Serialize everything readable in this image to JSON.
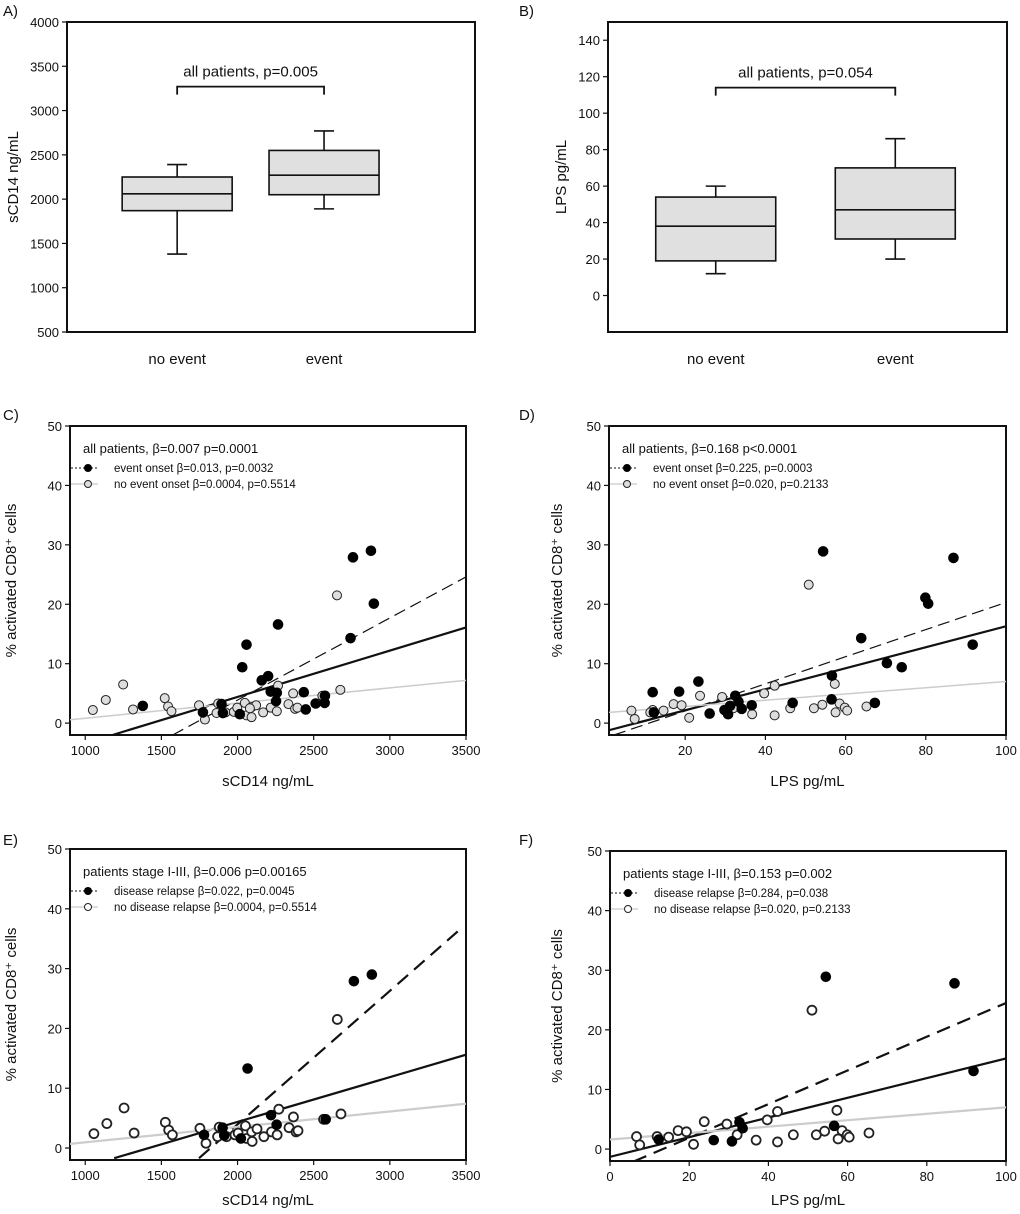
{
  "chart_data": [
    {
      "panel_label": "A)",
      "type": "box",
      "ylabel": "sCD14 ng/mL",
      "ylim": [
        500,
        4000
      ],
      "yticks": [
        500,
        1000,
        1500,
        2000,
        2500,
        3000,
        3500,
        4000
      ],
      "categories": [
        "no event",
        "event"
      ],
      "boxes": [
        {
          "whisker_low": 1380,
          "q1": 1870,
          "median": 2060,
          "q3": 2250,
          "whisker_high": 2390
        },
        {
          "whisker_low": 1890,
          "q1": 2050,
          "median": 2270,
          "q3": 2550,
          "whisker_high": 2770
        }
      ],
      "annotation": {
        "text": "all patients, p=0.005",
        "bracket_y": 3270
      },
      "box_fill": "#e0e0e0"
    },
    {
      "panel_label": "B)",
      "type": "box",
      "ylabel": "LPS pg/mL",
      "ylim": [
        -20,
        150
      ],
      "yticks": [
        0,
        20,
        40,
        60,
        80,
        100,
        120,
        140
      ],
      "categories": [
        "no event",
        "event"
      ],
      "boxes": [
        {
          "whisker_low": 12,
          "q1": 19,
          "median": 38,
          "q3": 54,
          "whisker_high": 60
        },
        {
          "whisker_low": 20,
          "q1": 31,
          "median": 47,
          "q3": 70,
          "whisker_high": 86
        }
      ],
      "annotation": {
        "text": "all patients, p=0.054",
        "bracket_y": 114
      },
      "box_fill": "#e0e0e0"
    },
    {
      "panel_label": "C)",
      "type": "scatter",
      "xlabel": "sCD14 ng/mL",
      "ylabel": "% activated CD8⁺ cells",
      "xlim": [
        900,
        3500
      ],
      "ylim": [
        -2,
        50
      ],
      "xticks": [
        1000,
        1500,
        2000,
        2500,
        3000,
        3500
      ],
      "yticks": [
        0,
        10,
        20,
        30,
        40,
        50
      ],
      "legend": {
        "title": "all patients, β=0.007 p=0.0001",
        "filled": "event onset β=0.013, p=0.0032",
        "open": "no event onset β=0.0004, p=0.5514",
        "placement": "top-left"
      },
      "open_fill": "#dddddd",
      "filled_points": [
        [
          1378,
          2.9
        ],
        [
          1773,
          1.8
        ],
        [
          1895,
          3.2
        ],
        [
          1904,
          1.7
        ],
        [
          2015,
          1.5
        ],
        [
          2031,
          9.4
        ],
        [
          2059,
          13.2
        ],
        [
          2159,
          7.2
        ],
        [
          2201,
          7.9
        ],
        [
          2218,
          5.3
        ],
        [
          2258,
          5.1
        ],
        [
          2253,
          3.7
        ],
        [
          2266,
          16.6
        ],
        [
          2435,
          5.2
        ],
        [
          2448,
          2.3
        ],
        [
          2513,
          3.3
        ],
        [
          2572,
          3.4
        ],
        [
          2574,
          4.6
        ],
        [
          2742,
          14.3
        ],
        [
          2758,
          27.9
        ],
        [
          2876,
          29.0
        ],
        [
          2895,
          20.1
        ]
      ],
      "open_points": [
        [
          1050,
          2.2
        ],
        [
          1135,
          3.9
        ],
        [
          1249,
          6.5
        ],
        [
          1314,
          2.3
        ],
        [
          1522,
          4.2
        ],
        [
          1544,
          2.8
        ],
        [
          1566,
          2.0
        ],
        [
          1747,
          3.0
        ],
        [
          1786,
          0.6
        ],
        [
          1862,
          1.7
        ],
        [
          1873,
          3.3
        ],
        [
          1921,
          1.8
        ],
        [
          1976,
          1.9
        ],
        [
          1998,
          2.6
        ],
        [
          2048,
          3.4
        ],
        [
          2059,
          1.3
        ],
        [
          2092,
          2.7
        ],
        [
          2092,
          1.0
        ],
        [
          2122,
          3.0
        ],
        [
          2081,
          2.5
        ],
        [
          2168,
          1.8
        ],
        [
          2218,
          2.6
        ],
        [
          2258,
          2.0
        ],
        [
          2266,
          6.3
        ],
        [
          2334,
          3.2
        ],
        [
          2365,
          5.0
        ],
        [
          2378,
          2.4
        ],
        [
          2393,
          2.6
        ],
        [
          2557,
          4.6
        ],
        [
          2653,
          21.5
        ],
        [
          2675,
          5.6
        ]
      ],
      "fit_lines": [
        {
          "group": "all",
          "style": "solid",
          "x": [
            1179,
            3500
          ],
          "y": [
            -2.0,
            16.1
          ]
        },
        {
          "group": "filled",
          "style": "dashed",
          "x": [
            1574,
            3500
          ],
          "y": [
            -2.0,
            24.6
          ]
        },
        {
          "group": "open",
          "style": "gray",
          "x": [
            900,
            3500
          ],
          "y": [
            0.57,
            7.2
          ]
        }
      ]
    },
    {
      "panel_label": "D)",
      "type": "scatter",
      "xlabel": "LPS pg/mL",
      "ylabel": "% activated CD8⁺ cells",
      "xlim": [
        1,
        100
      ],
      "ylim": [
        -2,
        50
      ],
      "xticks": [
        20,
        40,
        60,
        80,
        100
      ],
      "yticks": [
        0,
        10,
        20,
        30,
        40,
        50
      ],
      "legend": {
        "title": "all patients, β=0.168 p<0.0001",
        "filled": "event onset β=0.225, p=0.0003",
        "open": "no event onset β=0.020, p=0.2133",
        "placement": "top-left"
      },
      "open_fill": "#dddddd",
      "filled_points": [
        [
          11.9,
          5.2
        ],
        [
          12.2,
          1.8
        ],
        [
          18.5,
          5.3
        ],
        [
          23.3,
          7.0
        ],
        [
          26.1,
          1.6
        ],
        [
          29.8,
          2.2
        ],
        [
          30.7,
          1.5
        ],
        [
          31.2,
          2.9
        ],
        [
          32.5,
          4.6
        ],
        [
          33.3,
          3.6
        ],
        [
          34.1,
          2.4
        ],
        [
          36.6,
          3.0
        ],
        [
          46.8,
          3.4
        ],
        [
          54.4,
          28.9
        ],
        [
          56.6,
          8.0
        ],
        [
          56.5,
          4.0
        ],
        [
          63.9,
          14.3
        ],
        [
          67.3,
          3.4
        ],
        [
          70.3,
          10.1
        ],
        [
          74.0,
          9.4
        ],
        [
          79.9,
          21.1
        ],
        [
          80.6,
          20.1
        ],
        [
          86.9,
          27.8
        ],
        [
          91.7,
          13.2
        ]
      ],
      "open_points": [
        [
          6.6,
          2.1
        ],
        [
          7.4,
          0.7
        ],
        [
          11.9,
          2.2
        ],
        [
          11.3,
          1.8
        ],
        [
          14.6,
          2.1
        ],
        [
          17.1,
          3.2
        ],
        [
          19.1,
          3.0
        ],
        [
          21.0,
          0.9
        ],
        [
          23.7,
          4.6
        ],
        [
          29.2,
          4.4
        ],
        [
          32.0,
          2.5
        ],
        [
          36.7,
          1.5
        ],
        [
          39.7,
          5.0
        ],
        [
          42.3,
          6.3
        ],
        [
          42.3,
          1.3
        ],
        [
          46.2,
          2.5
        ],
        [
          50.8,
          23.3
        ],
        [
          52.1,
          2.5
        ],
        [
          54.2,
          3.1
        ],
        [
          57.3,
          6.6
        ],
        [
          57.5,
          1.8
        ],
        [
          58.5,
          3.3
        ],
        [
          59.8,
          2.6
        ],
        [
          60.4,
          2.1
        ],
        [
          65.2,
          2.8
        ]
      ],
      "fit_lines": [
        {
          "group": "all",
          "style": "solid",
          "x": [
            1,
            100
          ],
          "y": [
            -1.2,
            16.3
          ]
        },
        {
          "group": "filled",
          "style": "dashed",
          "x": [
            2.25,
            100
          ],
          "y": [
            -2.0,
            20.3
          ]
        },
        {
          "group": "open",
          "style": "gray",
          "x": [
            1,
            100
          ],
          "y": [
            1.8,
            7.0
          ]
        }
      ]
    },
    {
      "panel_label": "E)",
      "type": "scatter",
      "xlabel": "sCD14 ng/mL",
      "ylabel": "% activated CD8⁺ cells",
      "xlim": [
        900,
        3500
      ],
      "ylim": [
        -2,
        50
      ],
      "xticks": [
        1000,
        1500,
        2000,
        2500,
        3000,
        3500
      ],
      "yticks": [
        0,
        10,
        20,
        30,
        40,
        50
      ],
      "legend": {
        "title": "patients stage I-III, β=0.006 p=0.00165",
        "filled": "disease relapse β=0.022, p=0.0045",
        "open": "no disease relapse β=0.0004, p=0.5514",
        "placement": "top-left"
      },
      "open_fill": "#ffffff",
      "filled_points": [
        [
          1780,
          2.2
        ],
        [
          1902,
          3.4
        ],
        [
          1913,
          2.1
        ],
        [
          2022,
          1.6
        ],
        [
          2066,
          13.3
        ],
        [
          2220,
          5.5
        ],
        [
          2257,
          3.9
        ],
        [
          2579,
          4.8
        ],
        [
          2764,
          27.9
        ],
        [
          2882,
          29.0
        ]
      ],
      "open_points": [
        [
          1057,
          2.4
        ],
        [
          1142,
          4.1
        ],
        [
          1255,
          6.7
        ],
        [
          1321,
          2.5
        ],
        [
          1526,
          4.3
        ],
        [
          1548,
          3.0
        ],
        [
          1572,
          2.2
        ],
        [
          1753,
          3.3
        ],
        [
          1793,
          0.8
        ],
        [
          1869,
          1.9
        ],
        [
          1880,
          3.5
        ],
        [
          1928,
          1.9
        ],
        [
          1983,
          2.2
        ],
        [
          2004,
          2.5
        ],
        [
          2052,
          3.7
        ],
        [
          2059,
          1.6
        ],
        [
          2093,
          2.7
        ],
        [
          2096,
          1.1
        ],
        [
          2128,
          3.2
        ],
        [
          2173,
          1.9
        ],
        [
          2223,
          2.7
        ],
        [
          2260,
          2.2
        ],
        [
          2271,
          6.5
        ],
        [
          2338,
          3.4
        ],
        [
          2367,
          5.2
        ],
        [
          2384,
          2.7
        ],
        [
          2397,
          2.9
        ],
        [
          2565,
          4.8
        ],
        [
          2655,
          21.5
        ],
        [
          2679,
          5.7
        ]
      ],
      "fit_lines": [
        {
          "group": "all",
          "style": "solid",
          "x": [
            1190,
            3500
          ],
          "y": [
            -1.7,
            15.6
          ]
        },
        {
          "group": "filled",
          "style": "dashed",
          "x": [
            1747,
            3467
          ],
          "y": [
            -1.7,
            36.7
          ]
        },
        {
          "group": "open",
          "style": "gray",
          "x": [
            900,
            3500
          ],
          "y": [
            0.7,
            7.4
          ]
        }
      ]
    },
    {
      "panel_label": "F)",
      "type": "scatter",
      "xlabel": "LPS pg/mL",
      "ylabel": "% activated CD8⁺ cells",
      "xlim": [
        0,
        100
      ],
      "ylim": [
        -2,
        50
      ],
      "xticks": [
        0,
        20,
        40,
        60,
        80,
        100
      ],
      "yticks": [
        0,
        10,
        20,
        30,
        40,
        50
      ],
      "legend": {
        "title": "patients stage I-III, β=0.153 p=0.002",
        "filled": "disease relapse β=0.284, p=0.038",
        "open": "no disease relapse β=0.020, p=0.2133",
        "placement": "top-left"
      },
      "open_fill": "#ffffff",
      "filled_points": [
        [
          12.3,
          1.6
        ],
        [
          26.2,
          1.5
        ],
        [
          30.8,
          1.3
        ],
        [
          32.7,
          4.5
        ],
        [
          33.5,
          3.5
        ],
        [
          54.5,
          28.9
        ],
        [
          56.6,
          3.9
        ],
        [
          87.0,
          27.8
        ],
        [
          91.8,
          13.1
        ]
      ],
      "open_points": [
        [
          6.7,
          2.1
        ],
        [
          7.5,
          0.7
        ],
        [
          11.9,
          2.1
        ],
        [
          14.8,
          2.0
        ],
        [
          17.2,
          3.1
        ],
        [
          19.3,
          2.9
        ],
        [
          21.1,
          0.8
        ],
        [
          23.8,
          4.6
        ],
        [
          29.5,
          4.2
        ],
        [
          32.1,
          2.4
        ],
        [
          36.9,
          1.5
        ],
        [
          39.7,
          4.9
        ],
        [
          42.3,
          6.3
        ],
        [
          42.3,
          1.2
        ],
        [
          46.3,
          2.4
        ],
        [
          51.0,
          23.3
        ],
        [
          52.1,
          2.4
        ],
        [
          54.2,
          3.0
        ],
        [
          57.3,
          6.5
        ],
        [
          57.6,
          1.7
        ],
        [
          58.6,
          3.1
        ],
        [
          59.9,
          2.4
        ],
        [
          60.4,
          2.0
        ],
        [
          65.4,
          2.7
        ]
      ],
      "fit_lines": [
        {
          "group": "all",
          "style": "solid",
          "x": [
            0,
            100
          ],
          "y": [
            -1.3,
            15.2
          ]
        },
        {
          "group": "filled",
          "style": "dashed",
          "x": [
            5.9,
            100
          ],
          "y": [
            -2.1,
            24.5
          ]
        },
        {
          "group": "open",
          "style": "gray",
          "x": [
            0,
            100
          ],
          "y": [
            1.6,
            7.0
          ]
        }
      ]
    }
  ]
}
